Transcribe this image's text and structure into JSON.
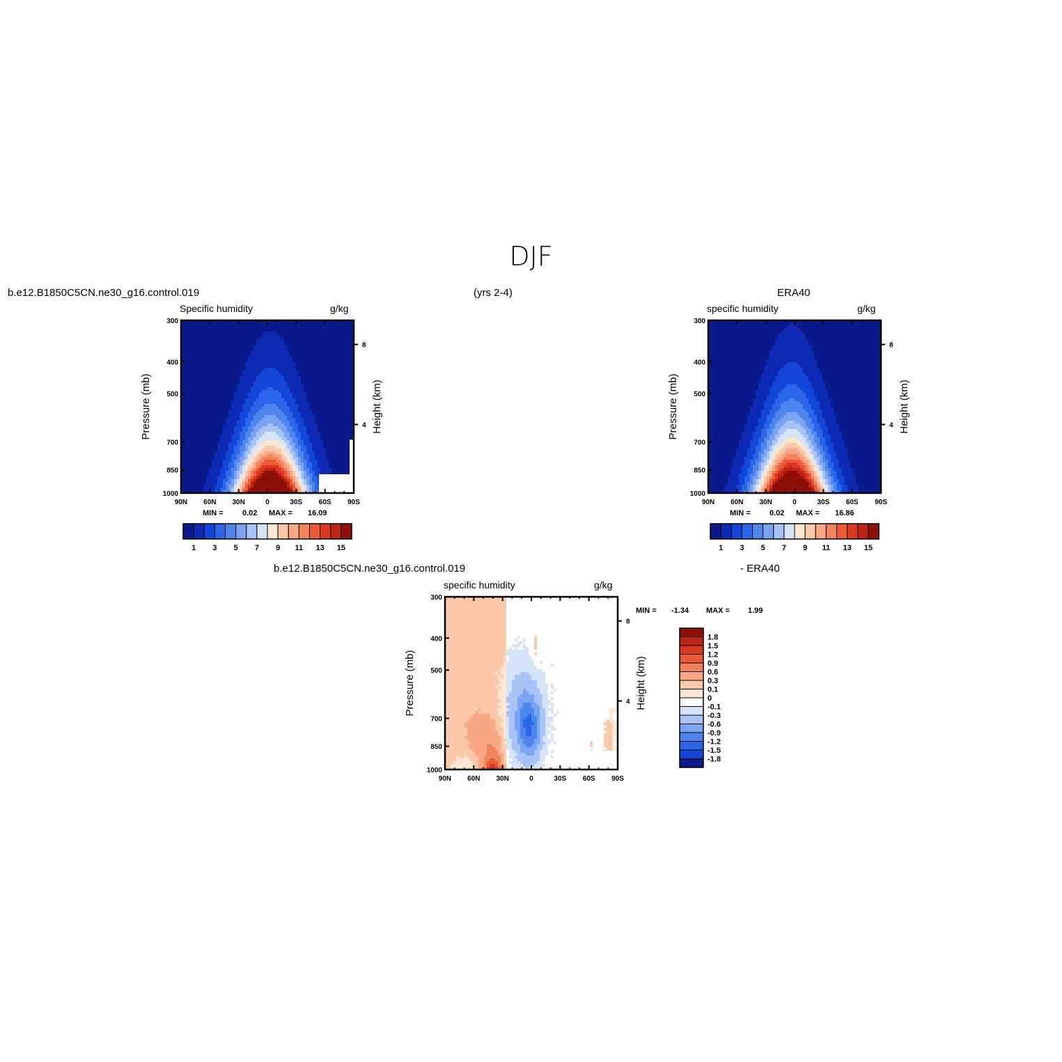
{
  "page": {
    "title": "DJF",
    "period": "(yrs 2-4)"
  },
  "panels": {
    "model": {
      "case_name": "b.e12.B1850C5CN.ne30_g16.control.019",
      "var_label": "Specific humidity",
      "units": "g/kg",
      "min_label": "MIN =",
      "min_value": "0.02",
      "max_label": "MAX =",
      "max_value": "16.09"
    },
    "obs": {
      "case_name": "ERA40",
      "var_label": "specific humidity",
      "units": "g/kg",
      "min_label": "MIN =",
      "min_value": "0.02",
      "max_label": "MAX =",
      "max_value": "16.86"
    },
    "diff": {
      "case_name": "b.e12.B1850C5CN.ne30_g16.control.019",
      "minus_label": "- ERA40",
      "var_label": "specific humidity",
      "units": "g/kg",
      "min_label": "MIN =",
      "min_value": "-1.34",
      "max_label": "MAX =",
      "max_value": "1.99"
    }
  },
  "axes": {
    "ylabel": "Pressure (mb)",
    "ylabel_right": "Height (km)",
    "pressure_ticks": [
      "300",
      "400",
      "500",
      "700",
      "850",
      "1000"
    ],
    "height_ticks": [
      "8",
      "4"
    ],
    "lat_ticks": [
      "90N",
      "60N",
      "30N",
      "0",
      "30S",
      "60S",
      "90S"
    ]
  },
  "colorbars": {
    "abs_labels": [
      "1",
      "3",
      "5",
      "7",
      "9",
      "11",
      "13",
      "15"
    ],
    "abs_colors": [
      "#0a1a8c",
      "#0c2ab4",
      "#1246d8",
      "#2a66ea",
      "#4f86ee",
      "#7aa4f2",
      "#a8c4f6",
      "#d6e4fa",
      "#fde6d2",
      "#fbc8aa",
      "#f8a884",
      "#f3835c",
      "#ec5a36",
      "#dc3a1e",
      "#bd2412",
      "#8e1008"
    ],
    "diff_labels": [
      "1.8",
      "1.5",
      "1.2",
      "0.9",
      "0.6",
      "0.3",
      "0.1",
      "0",
      "-0.1",
      "-0.3",
      "-0.6",
      "-0.9",
      "-1.2",
      "-1.5",
      "-1.8"
    ],
    "diff_colors": [
      "#8e1008",
      "#bd2412",
      "#dc3a1e",
      "#ec5a36",
      "#f3835c",
      "#f8a884",
      "#fbc8aa",
      "#fde6d2",
      "#ffffff",
      "#d6e4fa",
      "#a8c4f6",
      "#7aa4f2",
      "#4f86ee",
      "#2a66ea",
      "#1246d8",
      "#0a1a8c"
    ]
  },
  "chart_data": [
    {
      "type": "heatmap",
      "title": "Specific humidity",
      "subtitle": "b.e12.B1850C5CN.ne30_g16.control.019",
      "xlabel": "",
      "ylabel": "Pressure (mb)",
      "x_ticks": [
        "90N",
        "60N",
        "30N",
        "0",
        "30S",
        "60S",
        "90S"
      ],
      "y_ticks": [
        300,
        400,
        500,
        700,
        850,
        1000
      ],
      "contour_levels": [
        1,
        3,
        5,
        7,
        9,
        11,
        13,
        15
      ],
      "min": 0.02,
      "max": 16.09,
      "peak_location": {
        "lat": "near 0",
        "pressure": 1000
      }
    },
    {
      "type": "heatmap",
      "title": "specific humidity",
      "subtitle": "ERA40",
      "xlabel": "",
      "ylabel": "Pressure (mb)",
      "x_ticks": [
        "90N",
        "60N",
        "30N",
        "0",
        "30S",
        "60S",
        "90S"
      ],
      "y_ticks": [
        300,
        400,
        500,
        700,
        850,
        1000
      ],
      "contour_levels": [
        1,
        3,
        5,
        7,
        9,
        11,
        13,
        15
      ],
      "min": 0.02,
      "max": 16.86,
      "peak_location": {
        "lat": "near 0",
        "pressure": 1000
      }
    },
    {
      "type": "heatmap",
      "title": "specific humidity",
      "subtitle": "b.e12.B1850C5CN.ne30_g16.control.019 - ERA40",
      "xlabel": "",
      "ylabel": "Pressure (mb)",
      "x_ticks": [
        "90N",
        "60N",
        "30N",
        "0",
        "30S",
        "60S",
        "90S"
      ],
      "y_ticks": [
        300,
        400,
        500,
        700,
        850,
        1000
      ],
      "contour_levels": [
        -1.8,
        -1.5,
        -1.2,
        -0.9,
        -0.6,
        -0.3,
        -0.1,
        0,
        0.1,
        0.3,
        0.6,
        0.9,
        1.2,
        1.5,
        1.8
      ],
      "min": -1.34,
      "max": 1.99
    }
  ]
}
